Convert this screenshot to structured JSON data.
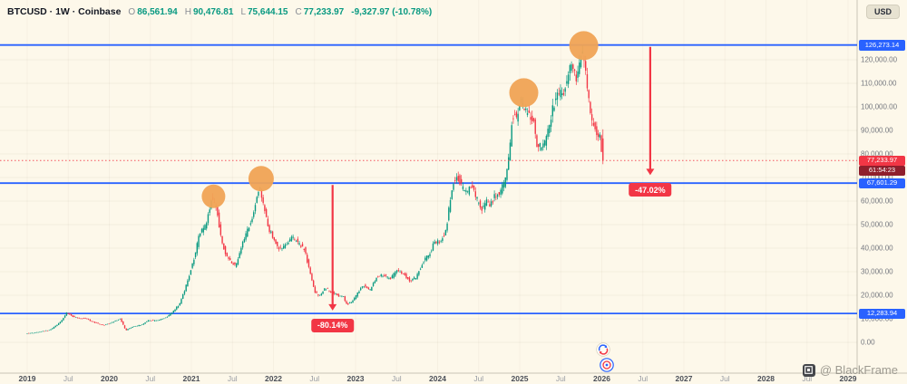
{
  "header": {
    "legend": {
      "title": "BTCUSD · 1W · Coinbase",
      "ohlc": [
        {
          "label": "O",
          "value": "86,561.94"
        },
        {
          "label": "H",
          "value": "90,476.81"
        },
        {
          "label": "L",
          "value": "75,644.15"
        },
        {
          "label": "C",
          "value": "77,233.97"
        }
      ],
      "change": "-9,327.97 (-10.78%)"
    },
    "currency_button": "USD"
  },
  "price_axis": {
    "last_price_label": "77,233.97",
    "countdown": "61:54:23"
  },
  "watermark": {
    "text": "@ BlackFrame"
  },
  "chart_data": {
    "type": "candlestick",
    "title": "BTCUSD 1W Coinbase",
    "x_range": [
      2019,
      2029
    ],
    "y_range": [
      0,
      130000
    ],
    "x_ticks": [
      "2019",
      "Jul",
      "2020",
      "Jul",
      "2021",
      "Jul",
      "2022",
      "Jul",
      "2023",
      "Jul",
      "2024",
      "Jul",
      "2025",
      "Jul",
      "2026",
      "Jul",
      "2027",
      "Jul",
      "2028",
      "Jul",
      "2029"
    ],
    "y_ticks": [
      {
        "v": 120000,
        "label": "120,000.00"
      },
      {
        "v": 110000,
        "label": "110,000.00"
      },
      {
        "v": 100000,
        "label": "100,000.00"
      },
      {
        "v": 90000,
        "label": "90,000.00"
      },
      {
        "v": 80000,
        "label": "80,000.00"
      },
      {
        "v": 70000,
        "label": "70,000.00"
      },
      {
        "v": 60000,
        "label": "60,000.00"
      },
      {
        "v": 50000,
        "label": "50,000.00"
      },
      {
        "v": 40000,
        "label": "40,000.00"
      },
      {
        "v": 30000,
        "label": "30,000.00"
      },
      {
        "v": 20000,
        "label": "20,000.00"
      },
      {
        "v": 10000,
        "label": "10,000.00"
      },
      {
        "v": 0,
        "label": "0.00"
      }
    ],
    "colors": {
      "up": "#089981",
      "down": "#f23645",
      "level": "#2962ff",
      "highlight": "#f0a355",
      "countdown_bg": "#8f1f2c"
    },
    "levels": [
      {
        "price": 126273.14,
        "label": "126,273.14"
      },
      {
        "price": 67601.29,
        "label": "67,601.29"
      },
      {
        "price": 12283.94,
        "label": "12,283.94"
      }
    ],
    "last_candle": {
      "o": 86561.94,
      "h": 90476.81,
      "l": 75644.15,
      "c": 77233.97
    },
    "peak_price": 126273.14,
    "data_end": 2026.02,
    "arrows": [
      {
        "t": 2022.72,
        "from": 67601.29,
        "to": 13500,
        "label": "-80.14%"
      },
      {
        "t": 2026.59,
        "from": 126273.14,
        "to": 71000,
        "label": "-47.02%"
      }
    ],
    "highlights": [
      {
        "t": 2021.27,
        "price": 62000,
        "r": 13
      },
      {
        "t": 2021.85,
        "price": 69500,
        "r": 14
      },
      {
        "t": 2025.05,
        "price": 106000,
        "r": 16
      },
      {
        "t": 2025.78,
        "price": 126000,
        "r": 16
      }
    ],
    "anchors": [
      [
        2019.0,
        3800
      ],
      [
        2019.1,
        4000
      ],
      [
        2019.3,
        5300
      ],
      [
        2019.42,
        8500
      ],
      [
        2019.5,
        12500
      ],
      [
        2019.6,
        10600
      ],
      [
        2019.75,
        9800
      ],
      [
        2019.85,
        8300
      ],
      [
        2019.95,
        7300
      ],
      [
        2020.05,
        8300
      ],
      [
        2020.15,
        10100
      ],
      [
        2020.22,
        5100
      ],
      [
        2020.3,
        6600
      ],
      [
        2020.4,
        7300
      ],
      [
        2020.5,
        9300
      ],
      [
        2020.62,
        9200
      ],
      [
        2020.72,
        10900
      ],
      [
        2020.8,
        13100
      ],
      [
        2020.88,
        16500
      ],
      [
        2020.95,
        23500
      ],
      [
        2021.0,
        29500
      ],
      [
        2021.06,
        36500
      ],
      [
        2021.12,
        46500
      ],
      [
        2021.2,
        50000
      ],
      [
        2021.27,
        62000
      ],
      [
        2021.33,
        56000
      ],
      [
        2021.38,
        44000
      ],
      [
        2021.45,
        36500
      ],
      [
        2021.52,
        33500
      ],
      [
        2021.56,
        32000
      ],
      [
        2021.62,
        39500
      ],
      [
        2021.7,
        47500
      ],
      [
        2021.77,
        54500
      ],
      [
        2021.85,
        66500
      ],
      [
        2021.9,
        58000
      ],
      [
        2021.96,
        48500
      ],
      [
        2022.04,
        42500
      ],
      [
        2022.1,
        39500
      ],
      [
        2022.17,
        41500
      ],
      [
        2022.25,
        44500
      ],
      [
        2022.33,
        42000
      ],
      [
        2022.4,
        39500
      ],
      [
        2022.46,
        30000
      ],
      [
        2022.52,
        21500
      ],
      [
        2022.58,
        19500
      ],
      [
        2022.65,
        23000
      ],
      [
        2022.72,
        21500
      ],
      [
        2022.8,
        19800
      ],
      [
        2022.87,
        19300
      ],
      [
        2022.91,
        16300
      ],
      [
        2022.97,
        16800
      ],
      [
        2023.05,
        21300
      ],
      [
        2023.12,
        24300
      ],
      [
        2023.2,
        22300
      ],
      [
        2023.28,
        28000
      ],
      [
        2023.36,
        28500
      ],
      [
        2023.44,
        26800
      ],
      [
        2023.52,
        30300
      ],
      [
        2023.6,
        29300
      ],
      [
        2023.68,
        26100
      ],
      [
        2023.76,
        27600
      ],
      [
        2023.84,
        34300
      ],
      [
        2023.92,
        37500
      ],
      [
        2023.98,
        42500
      ],
      [
        2024.05,
        43000
      ],
      [
        2024.12,
        47500
      ],
      [
        2024.2,
        67500
      ],
      [
        2024.26,
        70500
      ],
      [
        2024.32,
        65500
      ],
      [
        2024.38,
        63500
      ],
      [
        2024.44,
        66500
      ],
      [
        2024.5,
        60500
      ],
      [
        2024.56,
        56500
      ],
      [
        2024.62,
        60500
      ],
      [
        2024.66,
        57500
      ],
      [
        2024.72,
        62500
      ],
      [
        2024.78,
        63500
      ],
      [
        2024.84,
        68500
      ],
      [
        2024.88,
        75500
      ],
      [
        2024.93,
        96500
      ],
      [
        2024.98,
        95500
      ],
      [
        2025.03,
        102500
      ],
      [
        2025.07,
        100500
      ],
      [
        2025.12,
        96800
      ],
      [
        2025.18,
        95500
      ],
      [
        2025.23,
        83500
      ],
      [
        2025.28,
        82800
      ],
      [
        2025.34,
        85500
      ],
      [
        2025.4,
        96500
      ],
      [
        2025.46,
        103500
      ],
      [
        2025.52,
        105500
      ],
      [
        2025.57,
        107500
      ],
      [
        2025.62,
        117000
      ],
      [
        2025.67,
        115500
      ],
      [
        2025.72,
        112500
      ],
      [
        2025.78,
        123000
      ],
      [
        2025.82,
        113500
      ],
      [
        2025.86,
        103500
      ],
      [
        2025.9,
        94500
      ],
      [
        2025.95,
        89500
      ],
      [
        2026.0,
        86500
      ],
      [
        2026.02,
        79000
      ]
    ]
  }
}
